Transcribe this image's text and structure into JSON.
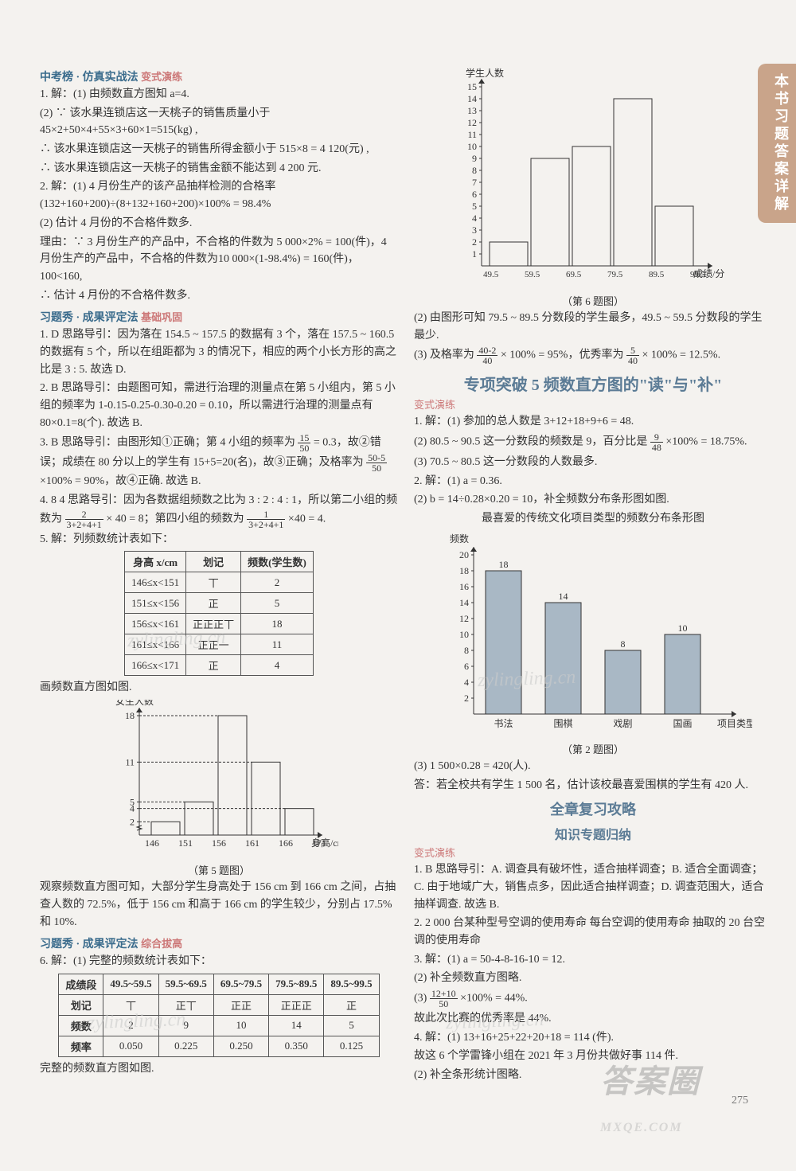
{
  "sidetab": "本书习题答案详解",
  "left": {
    "sec1_title": "中考榜 · 仿真实战法",
    "sec1_sub": "变式演练",
    "p1_1": "1. 解：(1) 由频数直方图知 a=4.",
    "p1_2": "(2) ∵ 该水果连锁店这一天桃子的销售质量小于 45×2+50×4+55×3+60×1=515(kg) ,",
    "p1_3": "∴ 该水果连锁店这一天桃子的销售所得金额小于 515×8 = 4 120(元) ,",
    "p1_4": "∴ 该水果连锁店这一天桃子的销售金额不能达到 4 200 元.",
    "p2_1": "2. 解：(1) 4 月份生产的该产品抽样检测的合格率 (132+160+200)÷(8+132+160+200)×100% = 98.4%",
    "p2_2": "(2) 估计 4 月份的不合格件数多.",
    "p2_3": "理由：∵ 3 月份生产的产品中，不合格的件数为 5 000×2% = 100(件)，4 月份生产的产品中，不合格的件数为10 000×(1-98.4%) = 160(件)，100<160,",
    "p2_4": "∴ 估计 4 月份的不合格件数多.",
    "sec2_title": "习题秀 · 成果评定法",
    "sec2_sub": "基础巩固",
    "q1": "1. D  思路导引：因为落在 154.5 ~ 157.5 的数据有 3 个，落在 157.5 ~ 160.5 的数据有 5 个，所以在组距都为 3 的情况下，相应的两个小长方形的高之比是 3 : 5. 故选 D.",
    "q2": "2. B  思路导引：由题图可知，需进行治理的测量点在第 5 小组内，第 5 小组的频率为 1-0.15-0.25-0.30-0.20 = 0.10，所以需进行治理的测量点有 80×0.1=8(个). 故选 B.",
    "q3a": "3. B  思路导引：由图形知①正确；第 4 小组的频率为",
    "q3_frac1_n": "15",
    "q3_frac1_d": "50",
    "q3b": "= 0.3，故②错误；成绩在 80 分以上的学生有 15+5=20(名)，故③正确；及格率为",
    "q3_frac2_n": "50-5",
    "q3_frac2_d": "50",
    "q3c": "×100% = 90%，故④正确. 故选 B.",
    "q4a": "4. 8  4  思路导引：因为各数据组频数之比为 3 : 2 : 4 : 1，所以第二小组的频数为",
    "q4_frac1_n": "2",
    "q4_frac1_d": "3+2+4+1",
    "q4b": "× 40 = 8；第四小组的频数为",
    "q4_frac2_n": "1",
    "q4_frac2_d": "3+2+4+1",
    "q4c": "×40 = 4.",
    "q5_1": "5. 解：列频数统计表如下：",
    "table5": {
      "headers": [
        "身高 x/cm",
        "划记",
        "频数(学生数)"
      ],
      "rows": [
        [
          "146≤x<151",
          "丅",
          "2"
        ],
        [
          "151≤x<156",
          "正",
          "5"
        ],
        [
          "156≤x<161",
          "正正正丅",
          "18"
        ],
        [
          "161≤x<166",
          "正正一",
          "11"
        ],
        [
          "166≤x<171",
          "正",
          "4"
        ]
      ]
    },
    "q5_2": "画频数直方图如图.",
    "chart5": {
      "ylabel": "女生人数",
      "xlabel": "身高/cm",
      "yticks": [
        2,
        4,
        5,
        11,
        18
      ],
      "xticks": [
        "146",
        "151",
        "156",
        "161",
        "166",
        "171"
      ],
      "values": [
        2,
        5,
        18,
        11,
        4
      ],
      "caption": "（第 5 题图）",
      "bar_fill": "none",
      "stroke": "#333"
    },
    "q5_3": "观察频数直方图可知，大部分学生身高处于 156 cm 到 166 cm 之间，占抽查人数的 72.5%，低于 156 cm 和高于 166 cm 的学生较少，分别占 17.5% 和 10%.",
    "sec3_title": "习题秀 · 成果评定法",
    "sec3_sub": "综合拔高",
    "q6_1": "6. 解：(1) 完整的频数统计表如下：",
    "table6": {
      "headers": [
        "成绩段",
        "49.5~59.5",
        "59.5~69.5",
        "69.5~79.5",
        "79.5~89.5",
        "89.5~99.5"
      ],
      "rows": [
        [
          "划记",
          "丅",
          "正丅",
          "正正",
          "正正正",
          "正"
        ],
        [
          "频数",
          "2",
          "9",
          "10",
          "14",
          "5"
        ],
        [
          "频率",
          "0.050",
          "0.225",
          "0.250",
          "0.350",
          "0.125"
        ]
      ]
    },
    "q6_2": "完整的频数直方图如图."
  },
  "right": {
    "chart6": {
      "ylabel": "学生人数",
      "xlabel": "成绩/分",
      "yticks": [
        1,
        2,
        3,
        4,
        5,
        6,
        7,
        8,
        9,
        10,
        11,
        12,
        13,
        14,
        15
      ],
      "xticks": [
        "49.5",
        "59.5",
        "69.5",
        "79.5",
        "89.5",
        "99.5"
      ],
      "values": [
        2,
        9,
        10,
        14,
        5
      ],
      "caption": "（第 6 题图）",
      "stroke": "#333"
    },
    "p6_2": "(2) 由图形可知 79.5 ~ 89.5 分数段的学生最多，49.5 ~ 59.5 分数段的学生最少.",
    "p6_3a": "(3) 及格率为",
    "p6_frac1_n": "40-2",
    "p6_frac1_d": "40",
    "p6_3b": "× 100% = 95%，优秀率为",
    "p6_frac2_n": "5",
    "p6_frac2_d": "40",
    "p6_3c": "× 100% = 12.5%.",
    "zx5_title": "专项突破 5  频数直方图的\"读\"与\"补\"",
    "zx5_sub": "变式演练",
    "zx5_1": "1. 解：(1) 参加的总人数是 3+12+18+9+6 = 48.",
    "zx5_2a": "(2) 80.5 ~ 90.5 这一分数段的频数是 9，百分比是",
    "zx5_frac_n": "9",
    "zx5_frac_d": "48",
    "zx5_2b": "×100% = 18.75%.",
    "zx5_3": "(3) 70.5 ~ 80.5 这一分数段的人数最多.",
    "zx5_4": "2. 解：(1) a = 0.36.",
    "zx5_5": "(2) b = 14÷0.28×0.20 = 10，补全频数分布条形图如图.",
    "chart2_title": "最喜爱的传统文化项目类型的频数分布条形图",
    "chart2": {
      "ylabel": "频数",
      "xlabel": "项目类型",
      "yticks": [
        2,
        4,
        6,
        8,
        10,
        12,
        14,
        16,
        18,
        20
      ],
      "cats": [
        "书法",
        "围棋",
        "戏剧",
        "国画"
      ],
      "values": [
        18,
        14,
        8,
        10
      ],
      "labels": [
        "18",
        "14",
        "8",
        "10"
      ],
      "caption": "（第 2 题图）",
      "fill": "#a9b8c5"
    },
    "zx5_6": "(3) 1 500×0.28 = 420(人).",
    "zx5_7": "答：若全校共有学生 1 500 名，估计该校最喜爱围棋的学生有 420 人.",
    "qz_title1": "全章复习攻略",
    "qz_title2": "知识专题归纳",
    "qz_sub": "变式演练",
    "qz_1": "1. B  思路导引：A. 调查具有破坏性，适合抽样调查；B. 适合全面调查；C. 由于地域广大，销售点多，因此适合抽样调查；D. 调查范围大，适合抽样调查. 故选 B.",
    "qz_2": "2. 2 000 台某种型号空调的使用寿命  每台空调的使用寿命  抽取的 20 台空调的使用寿命",
    "qz_3_1": "3. 解：(1) a = 50-4-8-16-10 = 12.",
    "qz_3_2": "(2) 补全频数直方图略.",
    "qz_3_3a": "(3)",
    "qz_3_frac_n": "12+10",
    "qz_3_frac_d": "50",
    "qz_3_3b": "×100% = 44%.",
    "qz_3_4": "故此次比赛的优秀率是 44%.",
    "qz_4_1": "4. 解：(1) 13+16+25+22+20+18 = 114 (件).",
    "qz_4_2": "故这 6 个学雷锋小组在 2021 年 3 月份共做好事 114 件.",
    "qz_4_3": "(2) 补全条形统计图略."
  },
  "pagenum": "275",
  "watermark": "答案圈",
  "watermark_url": "MXQE.COM",
  "wm2": "zylingling.cn"
}
